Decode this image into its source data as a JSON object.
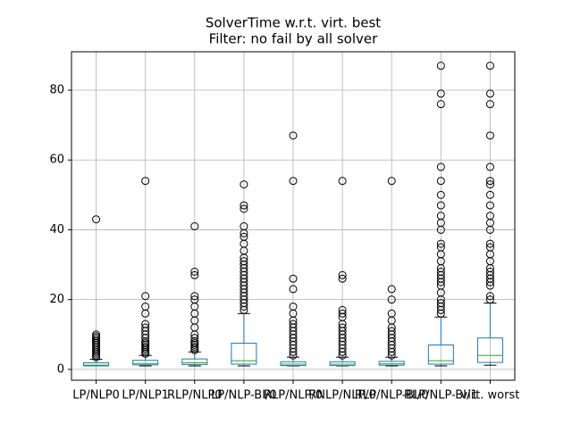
{
  "chart_data": {
    "type": "box",
    "title": "SolverTime w.r.t. virt. best",
    "subtitle": "Filter: no fail by all solver",
    "categories": [
      "LP/NLP0",
      "LP/NLP1",
      "RLP/NLP0",
      "LP/NLP-BI/0",
      "RLP/NLP/0",
      "RNLP/NLP/0",
      "RLP/NLP-BI/0",
      "RLP/NLP-BI/1",
      "virt. worst"
    ],
    "boxes": [
      {
        "whislo": 1.0,
        "q1": 1.0,
        "med": 1.2,
        "q3": 1.9,
        "whishi": 2.9,
        "fliers": [
          3.5,
          4,
          4.5,
          5,
          5.5,
          6,
          6.5,
          7,
          7.5,
          8,
          8.5,
          9,
          9.5,
          10,
          43
        ]
      },
      {
        "whislo": 1.0,
        "q1": 1.3,
        "med": 1.7,
        "q3": 2.6,
        "whishi": 4,
        "fliers": [
          4.5,
          5,
          5.5,
          6,
          6.5,
          7,
          7.5,
          8,
          9,
          10,
          11,
          12,
          13,
          16,
          18,
          21,
          54
        ]
      },
      {
        "whislo": 1.0,
        "q1": 1.4,
        "med": 1.9,
        "q3": 3,
        "whishi": 5,
        "fliers": [
          5.5,
          6,
          6.5,
          7,
          7.5,
          8,
          9,
          10,
          12,
          14,
          16,
          18,
          20,
          21,
          27,
          28,
          41
        ]
      },
      {
        "whislo": 1.0,
        "q1": 1.5,
        "med": 2.5,
        "q3": 7.5,
        "whishi": 16,
        "fliers": [
          17,
          18,
          19,
          20,
          21,
          22,
          23,
          24,
          25,
          26,
          27,
          28,
          29,
          30,
          31,
          32,
          34,
          36,
          38,
          39,
          41,
          46,
          47,
          53
        ]
      },
      {
        "whislo": 1.0,
        "q1": 1.1,
        "med": 1.5,
        "q3": 2.2,
        "whishi": 3.5,
        "fliers": [
          4,
          5,
          6,
          7,
          8,
          9,
          10,
          11,
          12,
          13,
          14,
          16,
          18,
          23,
          26,
          54,
          67
        ]
      },
      {
        "whislo": 1.0,
        "q1": 1.1,
        "med": 1.5,
        "q3": 2.2,
        "whishi": 3.5,
        "fliers": [
          4,
          5,
          6,
          7,
          8,
          9,
          10,
          11,
          12,
          13,
          15,
          16,
          17,
          26,
          27,
          54
        ]
      },
      {
        "whislo": 1.0,
        "q1": 1.2,
        "med": 1.6,
        "q3": 2.3,
        "whishi": 3.5,
        "fliers": [
          4,
          5,
          6,
          7,
          8,
          9,
          10,
          11,
          12,
          14,
          16,
          20,
          23,
          54
        ]
      },
      {
        "whislo": 1.0,
        "q1": 1.5,
        "med": 2.5,
        "q3": 7,
        "whishi": 15,
        "fliers": [
          16,
          17,
          18,
          19,
          20,
          22,
          24,
          25,
          26,
          27,
          28,
          29,
          31,
          33,
          35,
          36,
          40,
          42,
          44,
          47,
          50,
          54,
          58,
          76,
          79,
          87
        ]
      },
      {
        "whislo": 1.2,
        "q1": 2,
        "med": 4,
        "q3": 9,
        "whishi": 19,
        "fliers": [
          20,
          21,
          24,
          25,
          26,
          27,
          28,
          29,
          31,
          33,
          35,
          36,
          40,
          42,
          44,
          47,
          50,
          53,
          54,
          58,
          67,
          76,
          79,
          87
        ]
      }
    ],
    "color": "#1f77b4",
    "median_color": "#2ca02c",
    "ylim": [
      -3.1,
      91
    ],
    "yticks": [
      0,
      20,
      40,
      60,
      80
    ],
    "grid": true
  }
}
